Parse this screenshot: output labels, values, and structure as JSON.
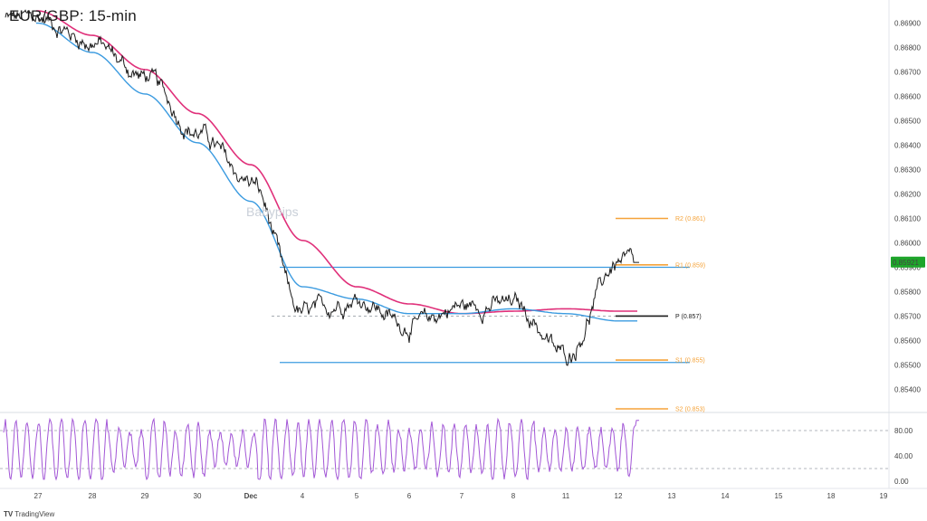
{
  "title": "EUR/GBP: 15-min",
  "watermark": "Babypips",
  "footer": {
    "logo": "TradingView"
  },
  "colors": {
    "price": "#1b1b1b",
    "ema_fast": "#3b9be0",
    "ema_slow": "#e0307a",
    "range_line": "#3b9be0",
    "pivot_level": "#f5a33a",
    "pivot_center": "#1b1b1b",
    "oscillator": "#a256d6",
    "last_price_badge": "#1ea52a"
  },
  "chart_data": [
    {
      "type": "line",
      "name": "price",
      "x_ticks": [
        "27",
        "28",
        "29",
        "30",
        "Dec",
        "4",
        "5",
        "6",
        "7",
        "8",
        "11",
        "12",
        "13",
        "14",
        "15",
        "18",
        "19"
      ],
      "y_ticks": [
        "0.86900",
        "0.86800",
        "0.86700",
        "0.86600",
        "0.86500",
        "0.86400",
        "0.86300",
        "0.86200",
        "0.86100",
        "0.86000",
        "0.85900",
        "0.85800",
        "0.85700",
        "0.85600",
        "0.85500",
        "0.85400"
      ],
      "ylim": [
        0.8532,
        0.8698
      ],
      "last_price": "0.85921",
      "series": [
        {
          "name": "",
          "role": "price",
          "x": [
            "27",
            "28",
            "29",
            "30",
            "Dec",
            "4",
            "5",
            "6",
            "7",
            "8",
            "11",
            "12"
          ],
          "values": [
            0.8692,
            0.8682,
            0.8668,
            0.8645,
            0.8625,
            0.8571,
            0.8577,
            0.8566,
            0.8574,
            0.8575,
            0.8554,
            0.8592
          ]
        },
        {
          "name": "",
          "role": "ema_fast",
          "x": [
            "27",
            "28",
            "29",
            "30",
            "Dec",
            "4",
            "5",
            "6",
            "7",
            "8",
            "11",
            "12"
          ],
          "values": [
            0.869,
            0.8678,
            0.8661,
            0.8641,
            0.8617,
            0.8582,
            0.8577,
            0.8571,
            0.8571,
            0.8573,
            0.8571,
            0.8568
          ]
        },
        {
          "name": "",
          "role": "ema_slow",
          "x": [
            "27",
            "28",
            "29",
            "30",
            "Dec",
            "4",
            "5",
            "6",
            "7",
            "8",
            "11",
            "12"
          ],
          "values": [
            0.8695,
            0.8685,
            0.8671,
            0.8653,
            0.8632,
            0.8601,
            0.8582,
            0.8575,
            0.8571,
            0.8572,
            0.8573,
            0.8572
          ]
        }
      ],
      "horizontal_lines": [
        {
          "label": "R2 (0.861)",
          "value": 0.861,
          "x_from": "12",
          "x_to": "13"
        },
        {
          "label": "R1 (0.859)",
          "value": 0.8591,
          "x_from": "12",
          "x_to": "13"
        },
        {
          "label": "P (0.857)",
          "value": 0.857,
          "x_from": "12",
          "x_to": "13"
        },
        {
          "label": "S1 (0.855)",
          "value": 0.8552,
          "x_from": "12",
          "x_to": "13"
        },
        {
          "label": "S2 (0.853)",
          "value": 0.8532,
          "x_from": "12",
          "x_to": "13"
        }
      ],
      "range_box": {
        "top": 0.859,
        "bottom": 0.8551,
        "x_from": "Dec",
        "x_to": "13"
      },
      "grid": false
    },
    {
      "type": "line",
      "name": "oscillator",
      "y_ticks": [
        "80.00",
        "40.00",
        "0.00"
      ],
      "ylim": [
        0,
        100
      ],
      "reference_lines": [
        80,
        20
      ],
      "last_value": 96
    }
  ]
}
